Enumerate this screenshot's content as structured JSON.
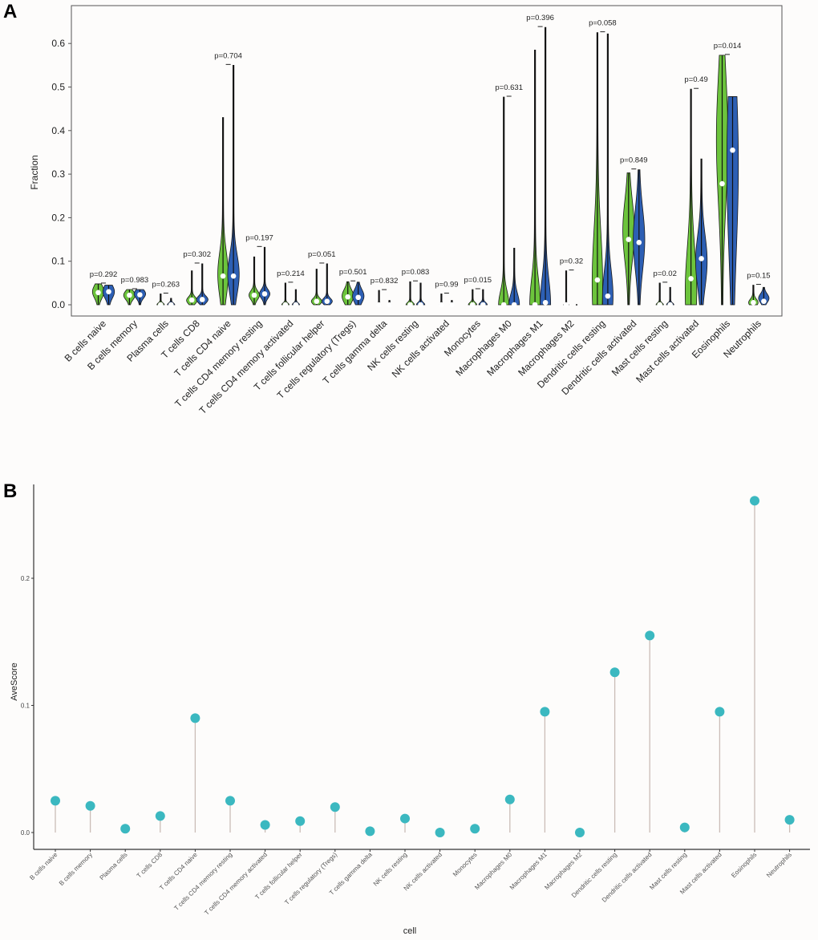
{
  "chart_data": [
    {
      "type": "violin",
      "panel_label": "A",
      "ylabel": "Fraction",
      "ylim": [
        0,
        0.65
      ],
      "yticks": [
        "0.0",
        "0.1",
        "0.2",
        "0.3",
        "0.4",
        "0.5",
        "0.6"
      ],
      "colors": {
        "group1": "#6cc43c",
        "group2": "#2d5fb4"
      },
      "categories": [
        "B cells naive",
        "B cells memory",
        "Plasma cells",
        "T cells CD8",
        "T cells CD4 naive",
        "T cells CD4 memory resting",
        "T cells CD4 memory activated",
        "T cells follicular helper",
        "T cells regulatory (Tregs)",
        "T cells gamma delta",
        "NK cells resting",
        "NK cells activated",
        "Monocytes",
        "Macrophages M0",
        "Macrophages M1",
        "Macrophages M2",
        "Dendritic cells resting",
        "Dendritic cells activated",
        "Mast cells resting",
        "Mast cells activated",
        "Eosinophils",
        "Neutrophils"
      ],
      "p_values": [
        "p=0.292",
        "p=0.983",
        "p=0.263",
        "p=0.302",
        "p=0.704",
        "p=0.197",
        "p=0.214",
        "p=0.051",
        "p=0.501",
        "p=0.832",
        "p=0.083",
        "p=0.99",
        "p=0.015",
        "p=0.631",
        "p=0.396",
        "p=0.32",
        "p=0.058",
        "p=0.849",
        "p=0.02",
        "p=0.49",
        "p=0.014",
        "p=0.15"
      ],
      "group1": [
        {
          "max": 0.048,
          "median": 0.028,
          "mode": 0.03,
          "spread": 0.015,
          "density": 1
        },
        {
          "max": 0.035,
          "median": 0.022,
          "mode": 0.022,
          "spread": 0.01,
          "density": 1
        },
        {
          "max": 0.025,
          "median": 0,
          "mode": 0,
          "spread": 0.004,
          "density": 0.6
        },
        {
          "max": 0.078,
          "median": 0.011,
          "mode": 0.01,
          "spread": 0.008,
          "density": 0.9
        },
        {
          "max": 0.43,
          "median": 0.066,
          "mode": 0.07,
          "spread": 0.05,
          "density": 0.9
        },
        {
          "max": 0.11,
          "median": 0.022,
          "mode": 0.022,
          "spread": 0.01,
          "density": 0.9
        },
        {
          "max": 0.05,
          "median": 0,
          "mode": 0,
          "spread": 0.004,
          "density": 0.6
        },
        {
          "max": 0.082,
          "median": 0.008,
          "mode": 0.008,
          "spread": 0.007,
          "density": 0.9
        },
        {
          "max": 0.053,
          "median": 0.018,
          "mode": 0.02,
          "spread": 0.015,
          "density": 1
        },
        {
          "max": 0.033,
          "median": 0,
          "mode": 0,
          "spread": 0.003,
          "density": 0.3
        },
        {
          "max": 0.053,
          "median": 0,
          "mode": 0,
          "spread": 0.005,
          "density": 0.7
        },
        {
          "max": 0.025,
          "median": 0,
          "mode": 0,
          "spread": 0.003,
          "density": 0.3
        },
        {
          "max": 0.035,
          "median": 0,
          "mode": 0,
          "spread": 0.005,
          "density": 0.7
        },
        {
          "max": 0.477,
          "median": 0,
          "mode": 0,
          "spread": 0.03,
          "density": 0.9
        },
        {
          "max": 0.585,
          "median": 0,
          "mode": 0,
          "spread": 0.06,
          "density": 0.9
        },
        {
          "max": 0.078,
          "median": 0,
          "mode": 0,
          "spread": 0.002,
          "density": 0.4
        },
        {
          "max": 0.625,
          "median": 0.057,
          "mode": 0.05,
          "spread": 0.12,
          "density": 0.9
        },
        {
          "max": 0.303,
          "median": 0.15,
          "mode": 0.17,
          "spread": 0.07,
          "density": 1
        },
        {
          "max": 0.05,
          "median": 0,
          "mode": 0,
          "spread": 0.004,
          "density": 0.6
        },
        {
          "max": 0.495,
          "median": 0.06,
          "mode": 0.03,
          "spread": 0.1,
          "density": 1
        },
        {
          "max": 0.573,
          "median": 0.278,
          "mode": 0.38,
          "spread": 0.15,
          "density": 1
        },
        {
          "max": 0.045,
          "median": 0.005,
          "mode": 0.005,
          "spread": 0.008,
          "density": 0.8
        }
      ],
      "group2": [
        {
          "max": 0.045,
          "median": 0.03,
          "mode": 0.03,
          "spread": 0.015,
          "density": 1
        },
        {
          "max": 0.035,
          "median": 0.023,
          "mode": 0.025,
          "spread": 0.01,
          "density": 1
        },
        {
          "max": 0.015,
          "median": 0,
          "mode": 0,
          "spread": 0.004,
          "density": 0.6
        },
        {
          "max": 0.094,
          "median": 0.012,
          "mode": 0.012,
          "spread": 0.008,
          "density": 1
        },
        {
          "max": 0.55,
          "median": 0.066,
          "mode": 0.07,
          "spread": 0.045,
          "density": 1
        },
        {
          "max": 0.132,
          "median": 0.025,
          "mode": 0.025,
          "spread": 0.01,
          "density": 0.9
        },
        {
          "max": 0.035,
          "median": 0,
          "mode": 0,
          "spread": 0.004,
          "density": 0.6
        },
        {
          "max": 0.094,
          "median": 0.008,
          "mode": 0.008,
          "spread": 0.007,
          "density": 0.9
        },
        {
          "max": 0.052,
          "median": 0.017,
          "mode": 0.02,
          "spread": 0.015,
          "density": 1
        },
        {
          "max": 0.01,
          "median": 0,
          "mode": 0,
          "spread": 0.003,
          "density": 0.3
        },
        {
          "max": 0.05,
          "median": 0,
          "mode": 0,
          "spread": 0.005,
          "density": 0.7
        },
        {
          "max": 0.01,
          "median": 0,
          "mode": 0,
          "spread": 0.003,
          "density": 0.3
        },
        {
          "max": 0.035,
          "median": 0,
          "mode": 0,
          "spread": 0.005,
          "density": 0.7
        },
        {
          "max": 0.13,
          "median": 0,
          "mode": 0,
          "spread": 0.025,
          "density": 0.9
        },
        {
          "max": 0.637,
          "median": 0.005,
          "mode": 0,
          "spread": 0.06,
          "density": 0.9
        },
        {
          "max": 0,
          "median": 0,
          "mode": 0,
          "spread": 0.002,
          "density": 0.3
        },
        {
          "max": 0.622,
          "median": 0.02,
          "mode": 0.02,
          "spread": 0.06,
          "density": 0.9
        },
        {
          "max": 0.31,
          "median": 0.143,
          "mode": 0.15,
          "spread": 0.07,
          "density": 1
        },
        {
          "max": 0.04,
          "median": 0,
          "mode": 0,
          "spread": 0.004,
          "density": 0.6
        },
        {
          "max": 0.335,
          "median": 0.106,
          "mode": 0.1,
          "spread": 0.06,
          "density": 1
        },
        {
          "max": 0.478,
          "median": 0.355,
          "mode": 0.32,
          "spread": 0.2,
          "density": 1
        },
        {
          "max": 0.04,
          "median": 0.008,
          "mode": 0.015,
          "spread": 0.01,
          "density": 0.9
        }
      ]
    },
    {
      "type": "lollipop",
      "panel_label": "B",
      "xlabel": "cell",
      "ylabel": "AveScore",
      "ylim": [
        -0.01,
        0.27
      ],
      "yticks": [
        "0.0",
        "0.1",
        "0.2"
      ],
      "colors": {
        "point": "#3bb8c0",
        "stem": "#cbbdb7"
      },
      "categories": [
        "B cells naive",
        "B cells memory",
        "Plasma cells",
        "T cells CD8",
        "T cells CD4 naive",
        "T cells CD4 memory resting",
        "T cells CD4 memory activated",
        "T cells follicular helper",
        "T cells regulatory (Tregs)",
        "T cells gamma delta",
        "NK cells resting",
        "NK cells activated",
        "Monocytes",
        "Macrophages M0",
        "Macrophages M1",
        "Macrophages M2",
        "Dendritic cells resting",
        "Dendritic cells activated",
        "Mast cells resting",
        "Mast cells activated",
        "Eosinophils",
        "Neutrophils"
      ],
      "values": [
        0.025,
        0.021,
        0.003,
        0.013,
        0.09,
        0.025,
        0.006,
        0.009,
        0.02,
        0.001,
        0.011,
        0.0,
        0.003,
        0.026,
        0.095,
        0.0,
        0.126,
        0.155,
        0.004,
        0.095,
        0.261,
        0.01
      ]
    }
  ]
}
